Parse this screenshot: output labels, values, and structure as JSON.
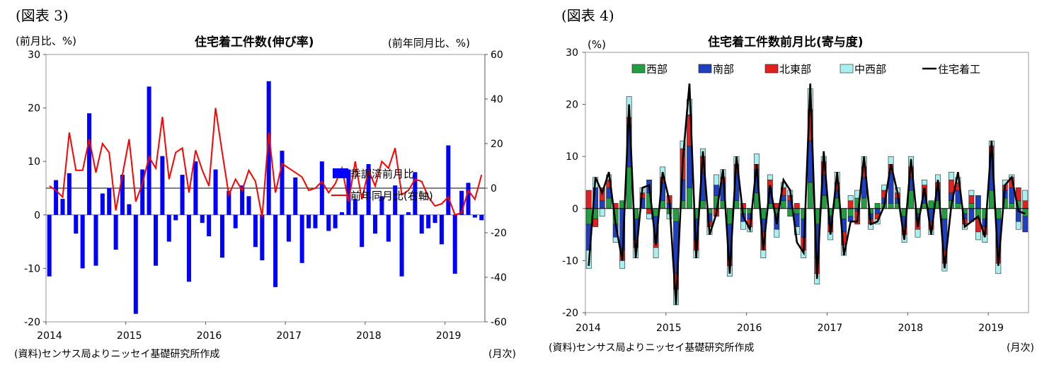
{
  "fig3": {
    "label": "(図表 3)",
    "title": "住宅着工件数(伸び率)",
    "left_unit": "(前月比、%)",
    "right_unit": "(前年同月比、%)",
    "source": "(資料)センサス局よりニッセイ基礎研究所作成",
    "freq": "(月次)"
  },
  "fig4": {
    "label": "(図表 4)",
    "title": "住宅着工件数前月比(寄与度)",
    "unit": "(%)",
    "source": "(資料)センサス局よりニッセイ基礎研究所作成",
    "freq": "(月次)"
  },
  "chart_data": [
    {
      "type": "bar",
      "title": "住宅着工件数(伸び率)",
      "ylabel": "(前月比、%)",
      "y2label": "(前年同月比、%)",
      "ylim": [
        -20,
        30
      ],
      "y2lim": [
        -60,
        60
      ],
      "yticks": [
        -20,
        -10,
        0,
        10,
        20,
        30
      ],
      "y2ticks": [
        -60,
        -40,
        -20,
        0,
        20,
        40,
        60
      ],
      "xlabels": [
        "2014",
        "2015",
        "2016",
        "2017",
        "2018",
        "2019"
      ],
      "legend": "center-right",
      "bar_color": "#0000ff",
      "line_color": "#ff0000",
      "series": [
        {
          "name": "季調済前月比",
          "kind": "bar",
          "axis": "left",
          "values": [
            -11.5,
            6.5,
            3.0,
            7.8,
            -3.5,
            -10.0,
            19.0,
            -9.5,
            4.0,
            5.0,
            -6.5,
            7.5,
            2.0,
            -18.5,
            8.5,
            24.0,
            -9.5,
            11.0,
            -5.0,
            -1.0,
            7.5,
            -12.5,
            10.0,
            -1.5,
            -4.0,
            8.5,
            -8.0,
            4.5,
            -2.5,
            5.5,
            3.5,
            -6.0,
            -8.5,
            25.0,
            -13.5,
            12.0,
            -5.0,
            7.0,
            -9.0,
            -2.5,
            -2.5,
            10.0,
            -3.0,
            -2.5,
            0.5,
            8.5,
            3.0,
            -6.0,
            9.5,
            -3.5,
            3.5,
            -5.0,
            5.5,
            -11.5,
            0.5,
            8.0,
            -3.5,
            -2.5,
            -1.5,
            -5.5,
            13.0,
            -11.0,
            4.5,
            6.0,
            -0.5,
            -1.0
          ]
        },
        {
          "name": "前年同月比(右軸)",
          "kind": "line",
          "axis": "right",
          "values": [
            1,
            -1,
            -4,
            25,
            8,
            8,
            22,
            7,
            20,
            16,
            -10,
            6,
            22,
            -6,
            2,
            14,
            9,
            32,
            4,
            16,
            18,
            -2,
            17,
            8,
            1,
            36,
            16,
            -3,
            4,
            -1,
            8,
            3,
            -13,
            25,
            -2,
            11,
            9,
            7,
            5,
            -1,
            0,
            3,
            -2,
            2,
            9,
            -6,
            12,
            -5,
            8,
            1,
            12,
            9,
            18,
            -3,
            -1,
            4,
            3,
            -4,
            -8,
            -7,
            -4,
            -12,
            -11,
            -1,
            -5,
            6
          ]
        }
      ]
    },
    {
      "type": "bar",
      "title": "住宅着工件数前月比(寄与度)",
      "ylabel": "(%)",
      "ylim": [
        -20,
        30
      ],
      "yticks": [
        -20,
        -10,
        0,
        10,
        20,
        30
      ],
      "xlabels": [
        "2014",
        "2015",
        "2016",
        "2017",
        "2018",
        "2019"
      ],
      "legend": "top",
      "stacked": true,
      "series": [
        {
          "name": "西部",
          "kind": "bar",
          "color": "#1f9f3f",
          "values": [
            -3.0,
            -2.0,
            0.0,
            2.0,
            -3.0,
            1.5,
            8.0,
            -2.0,
            0.0,
            3.0,
            -1.5,
            1.5,
            -1.0,
            -2.5,
            1.5,
            4.0,
            -2.0,
            1.5,
            -1.0,
            2.5,
            1.5,
            -3.0,
            1.5,
            -1.0,
            -1.0,
            3.0,
            -2.0,
            1.0,
            -1.0,
            1.5,
            -1.5,
            -1.0,
            -2.0,
            5.0,
            -3.0,
            2.5,
            -1.5,
            2.0,
            -2.0,
            -1.5,
            2.0,
            2.0,
            -1.0,
            1.0,
            1.0,
            1.0,
            1.0,
            -1.5,
            3.5,
            -1.0,
            1.0,
            1.5,
            1.5,
            -2.0,
            1.5,
            1.0,
            -1.0,
            1.0,
            -2.0,
            -2.0,
            3.5,
            -2.0,
            2.0,
            1.0,
            1.5,
            -1.5
          ]
        },
        {
          "name": "南部",
          "kind": "bar",
          "color": "#1e3fbf",
          "values": [
            -5.0,
            4.0,
            1.5,
            2.0,
            -2.5,
            -8.0,
            8.0,
            -4.0,
            2.0,
            2.5,
            -5.0,
            3.5,
            1.0,
            -10.0,
            4.0,
            8.0,
            -4.0,
            5.5,
            -1.5,
            2.0,
            3.5,
            -6.5,
            5.5,
            -1.5,
            -1.0,
            4.5,
            -2.5,
            3.0,
            -3.0,
            1.0,
            1.5,
            -2.5,
            -3.5,
            8.0,
            -6.5,
            4.0,
            -1.5,
            1.5,
            -2.5,
            -1.0,
            -0.5,
            4.0,
            -1.0,
            -1.0,
            1.0,
            6.0,
            1.0,
            -2.0,
            2.5,
            -1.0,
            1.5,
            -2.5,
            2.0,
            -6.0,
            1.5,
            2.5,
            -1.0,
            -2.5,
            2.5,
            -1.5,
            7.0,
            -5.5,
            1.5,
            3.0,
            -2.5,
            -3.0
          ]
        },
        {
          "name": "北東部",
          "kind": "bar",
          "color": "#e32020",
          "values": [
            3.5,
            -1.5,
            2.5,
            1.5,
            1.0,
            -2.0,
            1.5,
            -1.5,
            1.0,
            -1.0,
            -1.0,
            1.0,
            1.5,
            -3.0,
            6.0,
            6.0,
            -2.0,
            3.0,
            -1.0,
            -1.5,
            1.0,
            -1.5,
            1.5,
            1.0,
            -1.5,
            1.0,
            -3.5,
            1.5,
            1.0,
            1.5,
            1.0,
            1.0,
            -2.5,
            6.0,
            -3.0,
            2.5,
            -1.5,
            1.5,
            -2.5,
            1.5,
            -2.5,
            2.0,
            -1.0,
            -1.0,
            1.5,
            1.5,
            1.0,
            -1.5,
            2.0,
            -2.0,
            2.0,
            -1.5,
            1.5,
            -2.5,
            2.5,
            1.5,
            -1.0,
            1.5,
            -2.5,
            -1.5,
            1.5,
            -3.0,
            1.0,
            2.0,
            2.5,
            1.5
          ]
        },
        {
          "name": "中西部",
          "kind": "bar",
          "color": "#a8f0f0",
          "values": [
            -3.5,
            2.0,
            -1.5,
            1.0,
            -1.0,
            -1.5,
            4.0,
            -2.0,
            1.0,
            -1.0,
            -2.0,
            2.0,
            -1.0,
            -3.0,
            1.5,
            3.0,
            -1.5,
            1.5,
            -1.5,
            2.0,
            1.5,
            -2.0,
            1.5,
            -1.5,
            -1.0,
            2.0,
            -1.5,
            1.0,
            -1.5,
            1.0,
            1.0,
            -1.5,
            -1.5,
            4.0,
            -2.0,
            1.0,
            -1.5,
            2.0,
            -2.0,
            1.0,
            1.5,
            2.0,
            -1.0,
            -1.0,
            1.0,
            1.5,
            1.0,
            -1.5,
            2.0,
            -1.5,
            1.0,
            -1.0,
            1.5,
            -1.5,
            1.5,
            1.0,
            -1.0,
            1.0,
            -1.5,
            -1.5,
            1.0,
            -2.0,
            1.0,
            0.5,
            -1.5,
            2.0
          ]
        },
        {
          "name": "住宅着工",
          "kind": "line",
          "color": "#000000",
          "values": [
            -11.0,
            6.0,
            3.0,
            7.0,
            -3.0,
            -10.0,
            20.0,
            -9.5,
            4.0,
            4.5,
            -7.0,
            7.0,
            1.5,
            -18.5,
            9.0,
            24.0,
            -9.5,
            11.0,
            -5.0,
            -1.0,
            7.5,
            -12.5,
            10.0,
            -1.5,
            -4.0,
            8.5,
            -8.0,
            4.5,
            -3.0,
            5.5,
            3.5,
            -6.5,
            -8.5,
            24.0,
            -13.5,
            11.0,
            -5.0,
            7.0,
            -9.0,
            -2.5,
            -2.5,
            10.0,
            -3.0,
            -2.5,
            0.5,
            8.5,
            3.0,
            -6.0,
            9.5,
            -3.5,
            4.0,
            -5.0,
            5.5,
            -11.5,
            0.5,
            7.0,
            -3.5,
            -2.5,
            -1.5,
            -5.5,
            13.0,
            -11.0,
            4.5,
            6.0,
            -0.5,
            -1.0
          ]
        }
      ]
    }
  ]
}
